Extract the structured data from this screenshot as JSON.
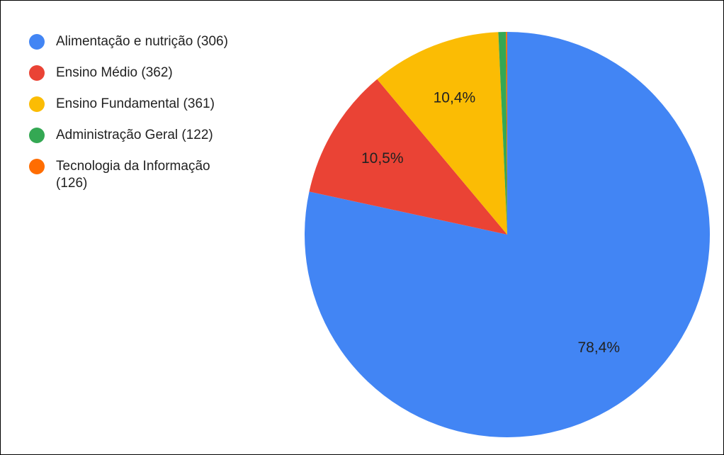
{
  "chart_data": {
    "type": "pie",
    "categories": [
      "Alimentação e nutrição (306)",
      "Ensino Médio (362)",
      "Ensino Fundamental (361)",
      "Administração Geral (122)",
      "Tecnologia da Informação (126)"
    ],
    "values": [
      78.4,
      10.5,
      10.4,
      0.6,
      0.1
    ],
    "value_labels": [
      "78,4%",
      "10,5%",
      "10,4%",
      null,
      null
    ],
    "colors": [
      "#4285f4",
      "#ea4335",
      "#fbbc04",
      "#34a853",
      "#ff6d01"
    ],
    "legend": "left"
  }
}
